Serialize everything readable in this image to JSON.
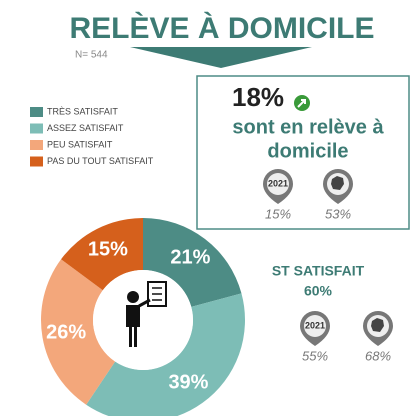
{
  "chart_data": {
    "type": "pie",
    "title": "RELÈVE À DOMICILE",
    "subtitle": "N= 544",
    "categories": [
      "TRÈS SATISFAIT",
      "ASSEZ SATISFAIT",
      "PEU SATISFAIT",
      "PAS DU TOUT SATISFAIT"
    ],
    "values": [
      21,
      39,
      26,
      15
    ],
    "value_labels": [
      "21%",
      "39%",
      "26%",
      "15%"
    ],
    "colors": [
      "#4d8c85",
      "#7dbdb6",
      "#f3a77b",
      "#d5601c"
    ],
    "donut": true
  },
  "panel": {
    "headline": "18%",
    "text": [
      "sont en relève à",
      "domicile"
    ],
    "badges": [
      {
        "label": "2021",
        "value": "15%"
      },
      {
        "value": "53%"
      }
    ]
  },
  "satisfaction": {
    "title": "ST SATISFAIT",
    "value": "60%",
    "badges": [
      {
        "label": "2021",
        "value": "55%"
      },
      {
        "value": "68%"
      }
    ]
  }
}
